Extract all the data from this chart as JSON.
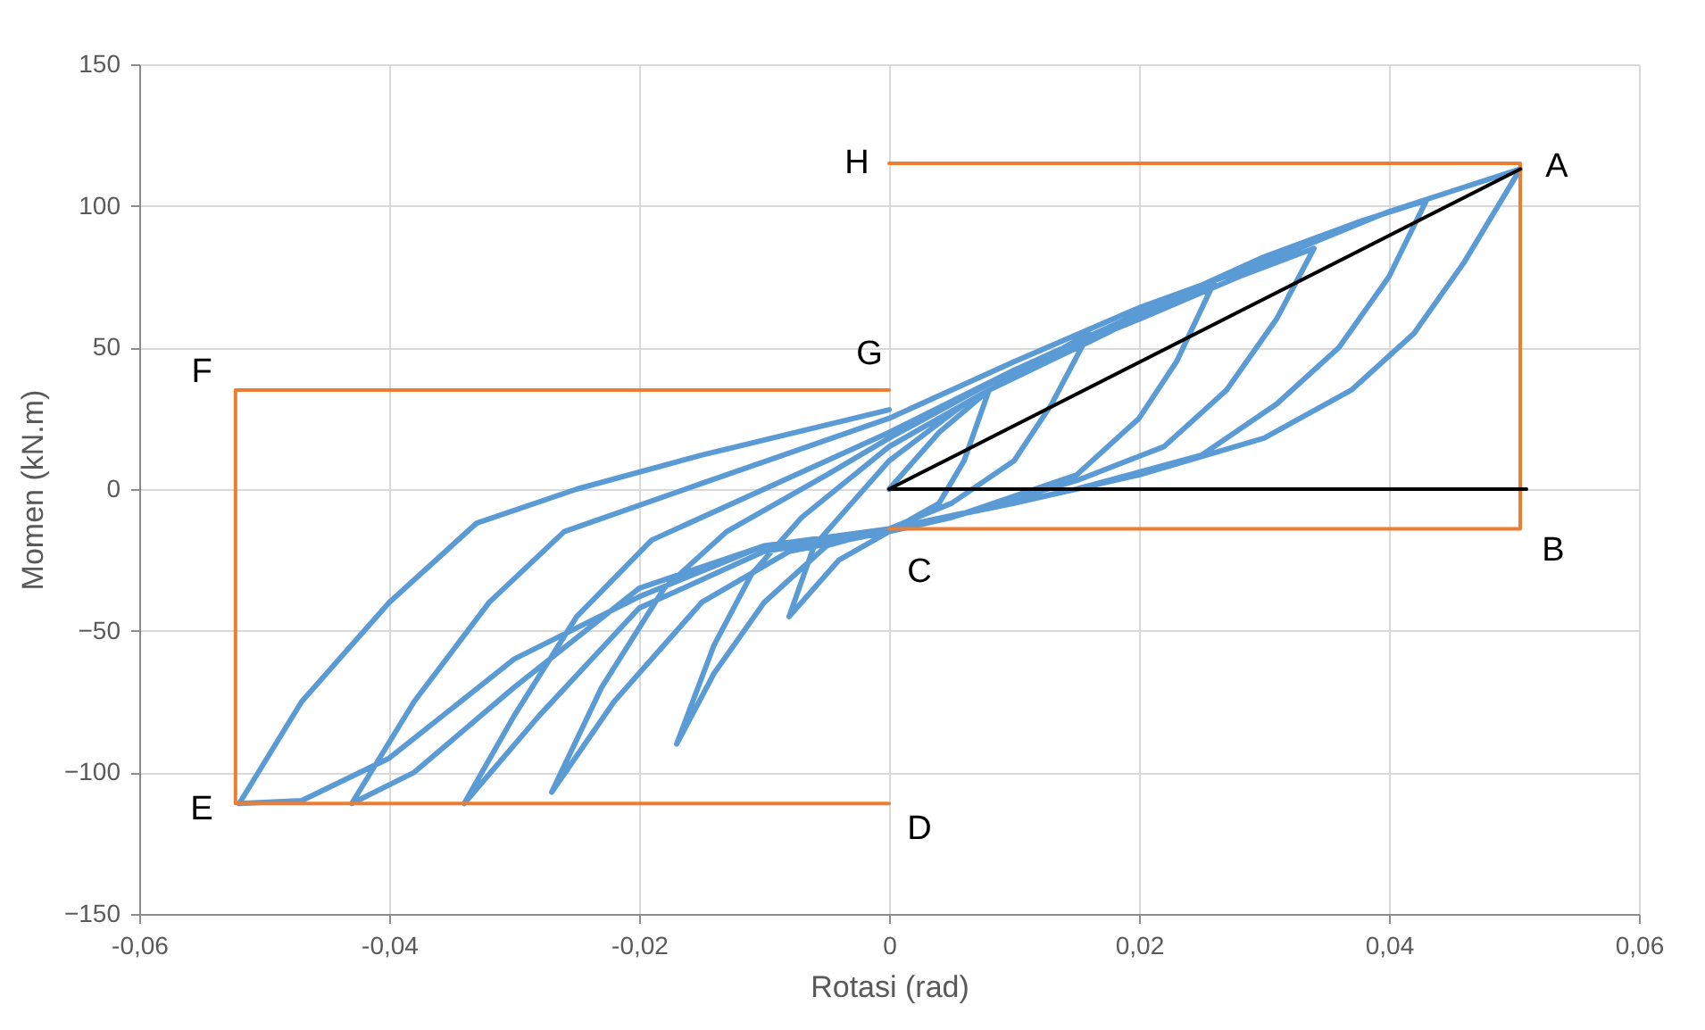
{
  "chart_data": {
    "type": "line",
    "xlabel": "Rotasi (rad)",
    "ylabel": "Momen (kN.m)",
    "xlim": [
      -0.06,
      0.06
    ],
    "ylim": [
      -150,
      150
    ],
    "xticks": [
      {
        "value": -0.06,
        "label": "-0,06"
      },
      {
        "value": -0.04,
        "label": "-0,04"
      },
      {
        "value": -0.02,
        "label": "-0,02"
      },
      0,
      {
        "value": 0.02,
        "label": "0,02"
      },
      {
        "value": 0.04,
        "label": "0,04"
      },
      {
        "value": 0.06,
        "label": "0,06"
      }
    ],
    "yticks": [
      -150,
      -100,
      -50,
      0,
      50,
      100,
      150
    ],
    "grid": true,
    "marker": "none",
    "line_style": "solid",
    "series": [
      {
        "color": "#5b9bd5",
        "x": [
          0,
          0.004,
          0.008,
          0.006,
          0.004,
          0,
          -0.004,
          -0.008,
          -0.006,
          -0.003,
          0,
          0.006,
          0.012,
          0.016,
          0.013,
          0.01,
          0.005,
          0,
          -0.005,
          -0.01,
          -0.014,
          -0.017,
          -0.014,
          -0.011,
          -0.007,
          0,
          0.008,
          0.016,
          0.022,
          0.026,
          0.023,
          0.02,
          0.015,
          0.005,
          0,
          -0.008,
          -0.015,
          -0.022,
          -0.027,
          -0.023,
          -0.018,
          -0.013,
          -0.005,
          0,
          0.01,
          0.02,
          0.028,
          0.034,
          0.031,
          0.027,
          0.022,
          0.015,
          0.005,
          0,
          -0.01,
          -0.02,
          -0.028,
          -0.034,
          -0.03,
          -0.025,
          -0.019,
          -0.01,
          0,
          0.01,
          0.02,
          0.03,
          0.038,
          0.043,
          0.04,
          0.036,
          0.031,
          0.025,
          0.015,
          0,
          -0.01,
          -0.02,
          -0.03,
          -0.038,
          -0.043,
          -0.038,
          -0.032,
          -0.026,
          -0.015,
          0,
          0.01,
          0.02,
          0.03,
          0.04,
          0.0505,
          0.046,
          0.042,
          0.037,
          0.03,
          0.02,
          0.01,
          0,
          -0.01,
          -0.02,
          -0.03,
          -0.04,
          -0.047,
          -0.052,
          -0.047,
          -0.04,
          -0.033,
          -0.025,
          -0.015,
          0
        ],
        "values": [
          0,
          20,
          35,
          10,
          -5,
          -15,
          -25,
          -45,
          -20,
          -5,
          10,
          30,
          45,
          55,
          30,
          10,
          -5,
          -14,
          -20,
          -40,
          -65,
          -90,
          -55,
          -30,
          -10,
          15,
          35,
          52,
          65,
          73,
          45,
          25,
          5,
          -10,
          -15,
          -22,
          -40,
          -75,
          -107,
          -70,
          -35,
          -15,
          5,
          18,
          42,
          60,
          75,
          85,
          60,
          35,
          15,
          3,
          -10,
          -15,
          -22,
          -42,
          -80,
          -111,
          -80,
          -45,
          -18,
          0,
          20,
          42,
          62,
          82,
          95,
          102,
          75,
          50,
          30,
          12,
          0,
          -14,
          -20,
          -35,
          -70,
          -100,
          -111,
          -75,
          -40,
          -15,
          2,
          25,
          45,
          64,
          80,
          98,
          113,
          80,
          55,
          35,
          18,
          5,
          -5,
          -14,
          -20,
          -38,
          -60,
          -95,
          -110,
          -111,
          -75,
          -40,
          -12,
          0,
          12,
          28
        ]
      },
      {
        "color": "#ed7d31",
        "x": [
          0,
          0.0505,
          0.0505,
          0
        ],
        "values": [
          115,
          115,
          -14,
          -14
        ]
      },
      {
        "color": "#ed7d31",
        "x": [
          0,
          -0.0523,
          -0.0523,
          0
        ],
        "values": [
          35,
          35,
          -111,
          -111
        ]
      },
      {
        "color": "#000000",
        "x": [
          0.0505,
          0,
          0.051
        ],
        "values": [
          113,
          0,
          0
        ]
      }
    ],
    "annotations": [
      "A",
      "B",
      "C",
      "D",
      "E",
      "F",
      "G",
      "H"
    ]
  }
}
